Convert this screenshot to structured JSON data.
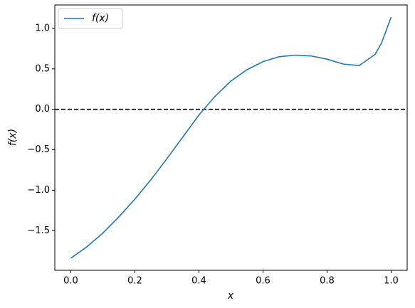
{
  "chart_data": {
    "type": "line",
    "xlabel": "x",
    "ylabel": "f(x)",
    "x": [
      0,
      0.05,
      0.1,
      0.15,
      0.2,
      0.25,
      0.3,
      0.35,
      0.4,
      0.45,
      0.5,
      0.55,
      0.6,
      0.65,
      0.7,
      0.75,
      0.8,
      0.85,
      0.9,
      0.95,
      0.97,
      1.0
    ],
    "series": [
      {
        "name": "f(x)",
        "color": "#1f77b4",
        "values": [
          -1.84,
          -1.7,
          -1.53,
          -1.33,
          -1.11,
          -0.87,
          -0.61,
          -0.34,
          -0.07,
          0.16,
          0.35,
          0.49,
          0.59,
          0.65,
          0.67,
          0.66,
          0.62,
          0.56,
          0.54,
          0.68,
          0.82,
          1.14
        ]
      }
    ],
    "hlines": [
      {
        "y": 0,
        "color": "#000000",
        "style": "dashed"
      }
    ],
    "xlim": [
      -0.05,
      1.05
    ],
    "ylim": [
      -1.99,
      1.29
    ],
    "xticks": [
      {
        "value": 0,
        "label": "0.0"
      },
      {
        "value": 0.2,
        "label": "0.2"
      },
      {
        "value": 0.4,
        "label": "0.4"
      },
      {
        "value": 0.6,
        "label": "0.6"
      },
      {
        "value": 0.8,
        "label": "0.8"
      },
      {
        "value": 1.0,
        "label": "1.0"
      }
    ],
    "yticks": [
      {
        "value": -1.5,
        "label": "−1.5"
      },
      {
        "value": -1.0,
        "label": "−1.0"
      },
      {
        "value": -0.5,
        "label": "−0.5"
      },
      {
        "value": 0,
        "label": "0.0"
      },
      {
        "value": 0.5,
        "label": "0.5"
      },
      {
        "value": 1.0,
        "label": "1.0"
      }
    ],
    "grid": false,
    "legend": "upper-left"
  }
}
